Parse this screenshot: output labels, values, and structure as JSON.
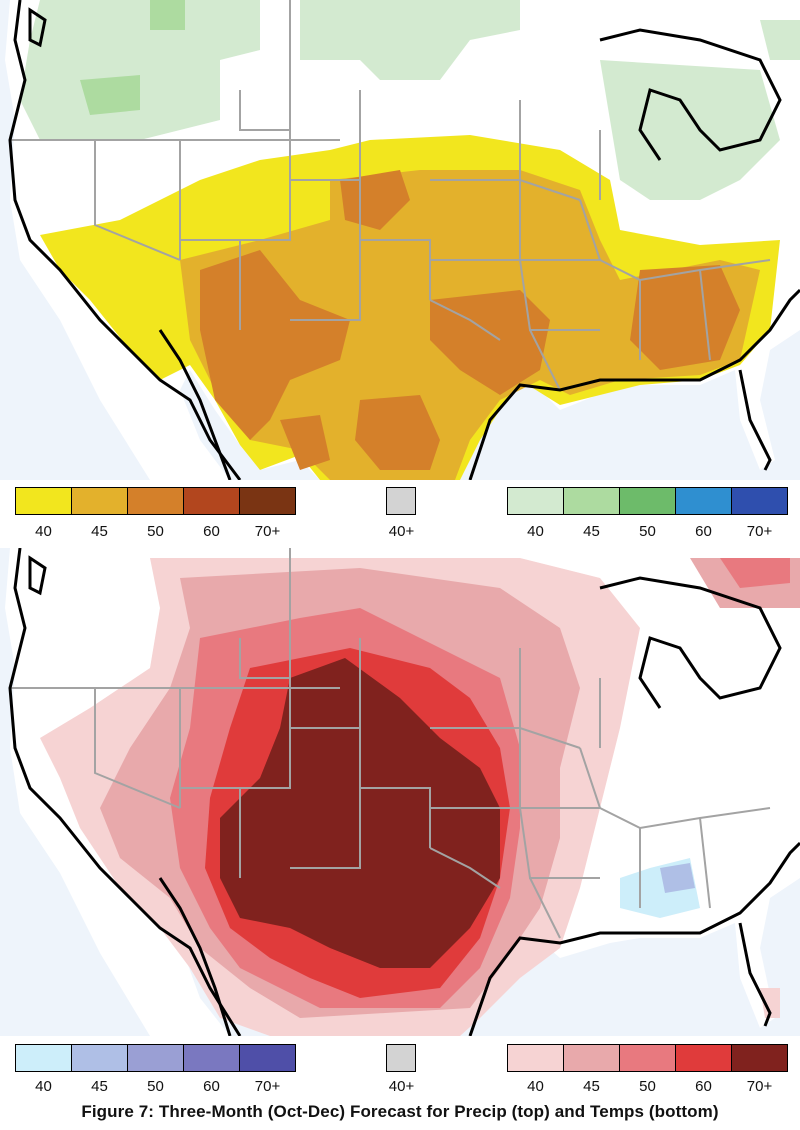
{
  "caption": "Figure 7: Three-Month (Oct-Dec) Forecast for Precip (top) and Temps (bottom)",
  "precip_map": {
    "legend_below": {
      "labels": [
        "40",
        "45",
        "50",
        "60",
        "70+"
      ],
      "colors": [
        "#f2e61e",
        "#e3b12c",
        "#d4802a",
        "#b2461e",
        "#7a3413"
      ]
    },
    "legend_normal": {
      "labels": [
        "40+"
      ],
      "colors": [
        "#d3d3d3"
      ]
    },
    "legend_above": {
      "labels": [
        "40",
        "45",
        "50",
        "60",
        "70+"
      ],
      "colors": [
        "#d3ead0",
        "#addba0",
        "#6dbb6a",
        "#2f8fd0",
        "#2f4fae"
      ]
    }
  },
  "temp_map": {
    "legend_below": {
      "labels": [
        "40",
        "45",
        "50",
        "60",
        "70+"
      ],
      "colors": [
        "#cdeefa",
        "#afbfe6",
        "#9a9fd4",
        "#7a78c0",
        "#4f4fa8"
      ]
    },
    "legend_normal": {
      "labels": [
        "40+"
      ],
      "colors": [
        "#d3d3d3"
      ]
    },
    "legend_above": {
      "labels": [
        "40",
        "45",
        "50",
        "60",
        "70+"
      ],
      "colors": [
        "#f6d3d3",
        "#e8a9ab",
        "#e8797f",
        "#e03b3b",
        "#80221e"
      ]
    }
  },
  "colors": {
    "background": "#ffffff",
    "state_border": "#a3a3a3",
    "coastline": "#000000",
    "ocean": "#eef4fb"
  }
}
